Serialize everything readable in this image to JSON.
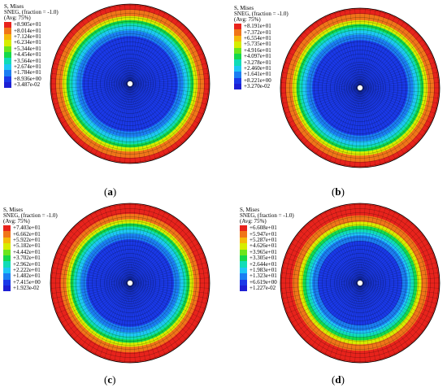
{
  "colors": [
    "#e8231c",
    "#f07519",
    "#f5b90a",
    "#d7ed00",
    "#6be51d",
    "#14d94b",
    "#10dcb7",
    "#1ec6f5",
    "#1b7ef2",
    "#1a39e8",
    "#1d1fd4"
  ],
  "panels": [
    {
      "id": "a",
      "legend": {
        "title": "S, Mises",
        "sneg": "SNEG, (fraction = -1.0)",
        "avg": "(Avg: 75%)",
        "values": [
          "+8.905e+01",
          "+8.014e+01",
          "+7.124e+01",
          "+6.234e+01",
          "+5.344e+01",
          "+4.454e+01",
          "+3.564e+01",
          "+2.674e+01",
          "+1.784e+01",
          "+8.936e+00",
          "+3.487e-02"
        ]
      },
      "caption": {
        "label": "a"
      },
      "bands": [
        0.07,
        0.15,
        0.2,
        0.24,
        0.28,
        0.33,
        0.4
      ]
    },
    {
      "id": "b",
      "legend": {
        "title": "S, Mises",
        "sneg": "SNEG, (fraction = -1.0)",
        "avg": "(Avg: 75%)",
        "values": [
          "+8.191e+01",
          "+7.372e+01",
          "+6.554e+01",
          "+5.735e+01",
          "+4.916e+01",
          "+4.097e+01",
          "+3.278e+01",
          "+2.460e+01",
          "+1.641e+01",
          "+8.221e+00",
          "+3.270e-02"
        ]
      },
      "caption": {
        "label": "b"
      },
      "bands": [
        0.07,
        0.15,
        0.2,
        0.24,
        0.28,
        0.33,
        0.4
      ]
    },
    {
      "id": "c",
      "legend": {
        "title": "S, Mises",
        "sneg": "SNEG, (fraction = -1.0)",
        "avg": "(Avg: 75%)",
        "values": [
          "+7.403e+01",
          "+6.662e+01",
          "+5.922e+01",
          "+5.182e+01",
          "+4.442e+01",
          "+3.702e+01",
          "+2.962e+01",
          "+2.222e+01",
          "+1.482e+01",
          "+7.415e+00",
          "+1.923e-02"
        ]
      },
      "caption": {
        "label": "c"
      },
      "bands": [
        0.13,
        0.2,
        0.25,
        0.29,
        0.33,
        0.38,
        0.45
      ]
    },
    {
      "id": "d",
      "legend": {
        "title": "S, Mises",
        "sneg": "SNEG, (fraction = -1.0)",
        "avg": "(Avg: 75%)",
        "values": [
          "+6.608e+01",
          "+5.947e+01",
          "+5.287e+01",
          "+4.626e+01",
          "+3.965e+01",
          "+3.305e+01",
          "+2.644e+01",
          "+1.983e+01",
          "+1.323e+01",
          "+6.619e+00",
          "+1.227e-02"
        ]
      },
      "caption": {
        "label": "d"
      },
      "bands": [
        0.15,
        0.23,
        0.28,
        0.32,
        0.36,
        0.4,
        0.47
      ]
    }
  ]
}
